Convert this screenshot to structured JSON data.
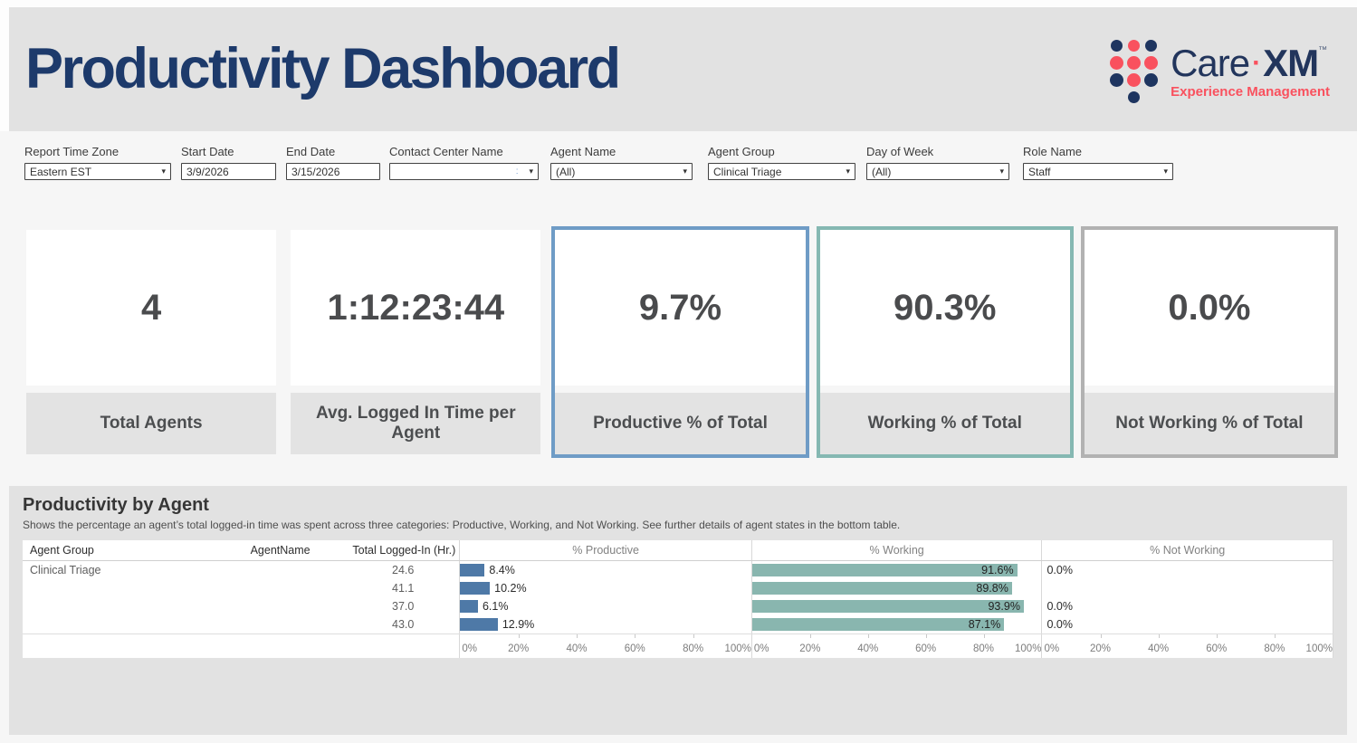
{
  "page": {
    "title": "Productivity Dashboard"
  },
  "logo": {
    "care": "Care",
    "middot": "·",
    "xm": "XM",
    "tm": "™",
    "tagline": "Experience Management",
    "colors": {
      "navy": "#1e3560",
      "coral": "#f9515e"
    },
    "dot_grid": [
      [
        "navy",
        "coral",
        "navy"
      ],
      [
        "coral",
        "coral",
        "coral"
      ],
      [
        "navy",
        "coral",
        "navy"
      ],
      [
        "",
        "navy",
        ""
      ]
    ]
  },
  "filters": [
    {
      "label": "Report Time Zone",
      "value": "Eastern EST",
      "type": "dropdown"
    },
    {
      "label": "Start Date",
      "value": "3/9/2026",
      "type": "text"
    },
    {
      "label": "End Date",
      "value": "3/15/2026",
      "type": "text"
    },
    {
      "label": "Contact Center Name",
      "value": ":",
      "type": "dropdown-faint"
    },
    {
      "label": "Agent Name",
      "value": "(All)",
      "type": "dropdown"
    },
    {
      "label": "Agent Group",
      "value": "Clinical Triage",
      "type": "dropdown"
    },
    {
      "label": "Day of Week",
      "value": "(All)",
      "type": "dropdown"
    },
    {
      "label": "Role Name",
      "value": "Staff",
      "type": "dropdown"
    }
  ],
  "kpis": [
    {
      "value": "4",
      "label": "Total Agents",
      "border": "transparent"
    },
    {
      "value": "1:12:23:44",
      "label": "Avg. Logged In Time per Agent",
      "border": "transparent"
    },
    {
      "value": "9.7%",
      "label": "Productive % of Total",
      "border": "#6f9cc6"
    },
    {
      "value": "90.3%",
      "label": "Working % of Total",
      "border": "#85b8b2"
    },
    {
      "value": "0.0%",
      "label": "Not Working % of Total",
      "border": "#b2b2b2"
    }
  ],
  "section": {
    "title": "Productivity by Agent",
    "subtitle": "Shows the percentage an agent’s total logged-in time was spent across three categories: Productive, Working, and Not Working. See further details of agent states in the bottom table."
  },
  "chart_data": {
    "type": "bar",
    "columns": [
      "Agent Group",
      "AgentName",
      "Total Logged-In (Hr.)",
      "% Productive",
      "% Working",
      "% Not Working"
    ],
    "rows": [
      {
        "agent_group": "Clinical Triage",
        "agent_name": "",
        "total_logged_in_hr": "24.6",
        "productive_pct": 8.4,
        "productive_label": "8.4%",
        "working_pct": 91.6,
        "working_label": "91.6%",
        "not_working_pct": 0,
        "not_working_label": "0.0%"
      },
      {
        "agent_group": "",
        "agent_name": "",
        "total_logged_in_hr": "41.1",
        "productive_pct": 10.2,
        "productive_label": "10.2%",
        "working_pct": 89.8,
        "working_label": "89.8%",
        "not_working_pct": 0,
        "not_working_label": ""
      },
      {
        "agent_group": "",
        "agent_name": "",
        "total_logged_in_hr": "37.0",
        "productive_pct": 6.1,
        "productive_label": "6.1%",
        "working_pct": 93.9,
        "working_label": "93.9%",
        "not_working_pct": 0,
        "not_working_label": "0.0%"
      },
      {
        "agent_group": "",
        "agent_name": "",
        "total_logged_in_hr": "43.0",
        "productive_pct": 12.9,
        "productive_label": "12.9%",
        "working_pct": 87.1,
        "working_label": "87.1%",
        "not_working_pct": 0,
        "not_working_label": "0.0%"
      }
    ],
    "axis_ticks": [
      "0%",
      "20%",
      "40%",
      "60%",
      "80%",
      "100%"
    ],
    "axis_range": [
      0,
      100
    ],
    "bar_colors": {
      "productive": "#4e79a7",
      "working": "#89b6af"
    }
  }
}
